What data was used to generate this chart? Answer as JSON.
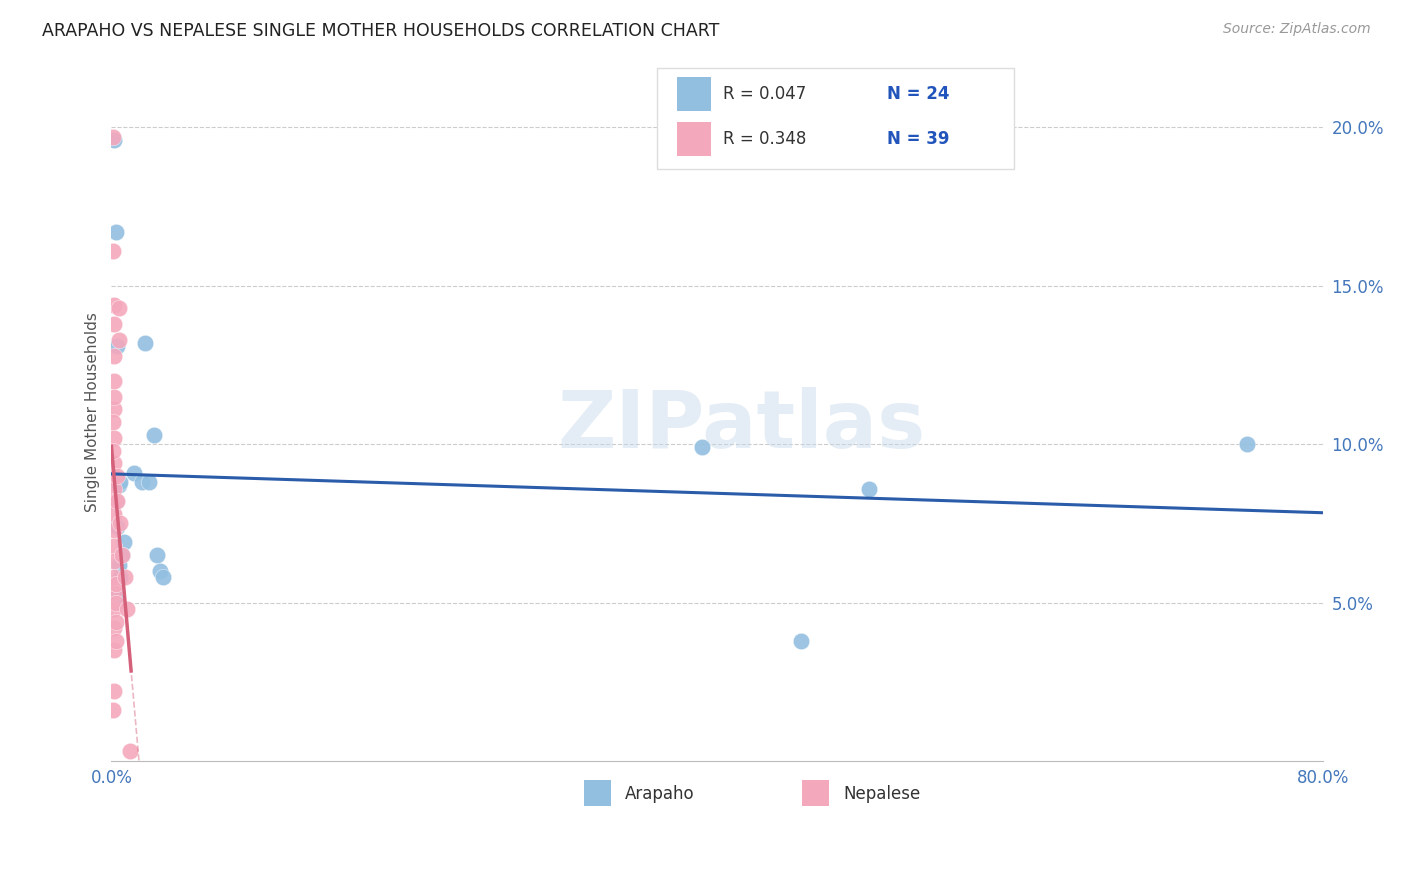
{
  "title": "ARAPAHO VS NEPALESE SINGLE MOTHER HOUSEHOLDS CORRELATION CHART",
  "source": "Source: ZipAtlas.com",
  "ylabel": "Single Mother Households",
  "watermark": "ZIPatlas",
  "legend_blue_r": "R = 0.047",
  "legend_blue_n": "N = 24",
  "legend_pink_r": "R = 0.348",
  "legend_pink_n": "N = 39",
  "blue_color": "#92bfe0",
  "pink_color": "#f4a8bc",
  "blue_line_color": "#2a5caa",
  "pink_line_color": "#d4607a",
  "blue_scatter": [
    [
      0.002,
      0.196
    ],
    [
      0.003,
      0.167
    ],
    [
      0.004,
      0.131
    ],
    [
      0.005,
      0.087
    ],
    [
      0.006,
      0.088
    ],
    [
      0.003,
      0.082
    ],
    [
      0.004,
      0.074
    ],
    [
      0.008,
      0.069
    ],
    [
      0.007,
      0.065
    ],
    [
      0.005,
      0.062
    ],
    [
      0.006,
      0.058
    ],
    [
      0.004,
      0.052
    ],
    [
      0.015,
      0.091
    ],
    [
      0.02,
      0.088
    ],
    [
      0.025,
      0.088
    ],
    [
      0.022,
      0.132
    ],
    [
      0.028,
      0.103
    ],
    [
      0.03,
      0.065
    ],
    [
      0.032,
      0.06
    ],
    [
      0.034,
      0.058
    ],
    [
      0.39,
      0.099
    ],
    [
      0.5,
      0.086
    ],
    [
      0.75,
      0.1
    ],
    [
      0.455,
      0.038
    ]
  ],
  "pink_scatter": [
    [
      0.001,
      0.197
    ],
    [
      0.001,
      0.161
    ],
    [
      0.002,
      0.144
    ],
    [
      0.002,
      0.138
    ],
    [
      0.002,
      0.128
    ],
    [
      0.002,
      0.12
    ],
    [
      0.002,
      0.111
    ],
    [
      0.002,
      0.102
    ],
    [
      0.002,
      0.094
    ],
    [
      0.002,
      0.09
    ],
    [
      0.002,
      0.086
    ],
    [
      0.002,
      0.082
    ],
    [
      0.002,
      0.078
    ],
    [
      0.002,
      0.073
    ],
    [
      0.002,
      0.068
    ],
    [
      0.002,
      0.063
    ],
    [
      0.002,
      0.058
    ],
    [
      0.002,
      0.053
    ],
    [
      0.002,
      0.048
    ],
    [
      0.002,
      0.042
    ],
    [
      0.002,
      0.035
    ],
    [
      0.002,
      0.022
    ],
    [
      0.001,
      0.016
    ],
    [
      0.003,
      0.056
    ],
    [
      0.003,
      0.05
    ],
    [
      0.003,
      0.044
    ],
    [
      0.003,
      0.038
    ],
    [
      0.004,
      0.09
    ],
    [
      0.004,
      0.082
    ],
    [
      0.005,
      0.143
    ],
    [
      0.005,
      0.133
    ],
    [
      0.006,
      0.075
    ],
    [
      0.007,
      0.065
    ],
    [
      0.009,
      0.058
    ],
    [
      0.01,
      0.048
    ],
    [
      0.001,
      0.107
    ],
    [
      0.001,
      0.098
    ],
    [
      0.002,
      0.115
    ],
    [
      0.012,
      0.003
    ]
  ],
  "xlim": [
    0.0,
    0.8
  ],
  "ylim": [
    0.0,
    0.22
  ],
  "xticks": [
    0.0,
    0.2,
    0.4,
    0.6,
    0.8
  ],
  "xtick_labels": [
    "0.0%",
    "",
    "",
    "",
    "80.0%"
  ],
  "ytick_positions": [
    0.0,
    0.05,
    0.1,
    0.15,
    0.2
  ],
  "ytick_labels_right": [
    "",
    "5.0%",
    "10.0%",
    "15.0%",
    "20.0%"
  ],
  "blue_reg_slope": 0.008,
  "blue_reg_intercept": 0.088,
  "pink_reg_slope": 8.5,
  "pink_reg_intercept": 0.065
}
